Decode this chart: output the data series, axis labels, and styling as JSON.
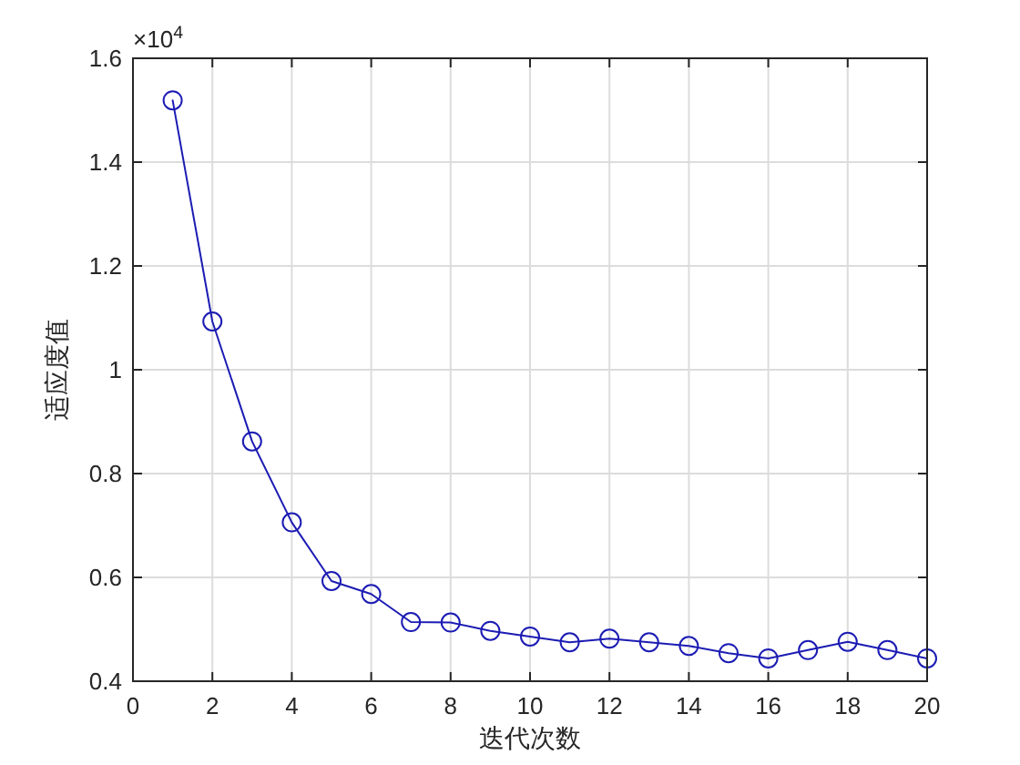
{
  "chart_data": {
    "type": "line",
    "xlabel": "迭代次数",
    "ylabel": "适应度值",
    "annotations": [
      "×10$^{4}$"
    ],
    "x": [
      1,
      2,
      3,
      4,
      5,
      6,
      7,
      8,
      9,
      10,
      11,
      12,
      13,
      14,
      15,
      16,
      17,
      18,
      19,
      20
    ],
    "series": [
      {
        "color": "#1c1cb4",
        "values": [
          1.519,
          1.093,
          0.862,
          0.706,
          0.593,
          0.568,
          0.514,
          0.513,
          0.497,
          0.486,
          0.475,
          0.482,
          0.475,
          0.468,
          0.454,
          0.444,
          0.46,
          0.476,
          0.46,
          0.444
        ]
      }
    ],
    "xlim": [
      0,
      20
    ],
    "xticks": [
      0,
      2,
      4,
      6,
      8,
      10,
      12,
      14,
      16,
      18,
      20
    ],
    "ylim": [
      0.4,
      1.6
    ],
    "yticks": [
      0.4,
      0.6,
      0.8,
      1,
      1.2,
      1.4,
      1.6
    ],
    "grid": true,
    "marker": "circle",
    "line_style": "solid"
  }
}
